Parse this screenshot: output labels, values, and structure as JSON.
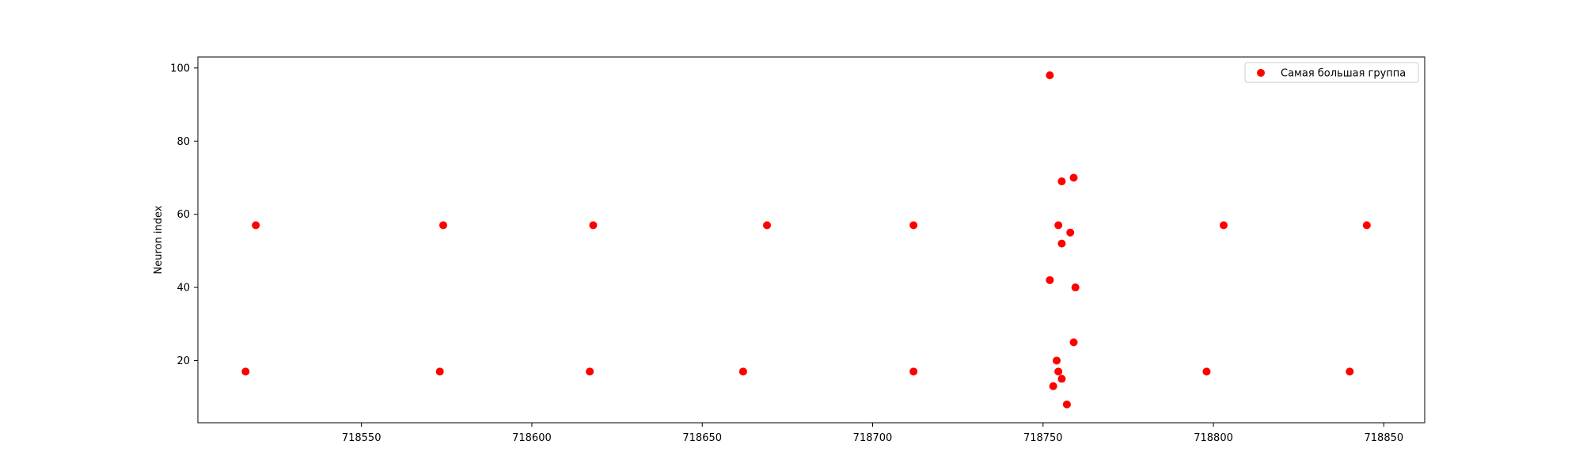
{
  "chart_data": {
    "type": "scatter",
    "title": "",
    "xlabel": "",
    "ylabel": "Neuron index",
    "xlim": [
      718502,
      718862
    ],
    "ylim": [
      3,
      103
    ],
    "xticks": [
      718550,
      718600,
      718650,
      718700,
      718750,
      718800,
      718850
    ],
    "yticks": [
      20,
      40,
      60,
      80,
      100
    ],
    "grid": false,
    "legend_position": "top-right",
    "series": [
      {
        "name": "Самая большая группа",
        "color": "#ff0000",
        "points": [
          {
            "x": 718519,
            "y": 57
          },
          {
            "x": 718516,
            "y": 17
          },
          {
            "x": 718574,
            "y": 57
          },
          {
            "x": 718573,
            "y": 17
          },
          {
            "x": 718618,
            "y": 57
          },
          {
            "x": 718617,
            "y": 17
          },
          {
            "x": 718669,
            "y": 57
          },
          {
            "x": 718662,
            "y": 17
          },
          {
            "x": 718712,
            "y": 57
          },
          {
            "x": 718712,
            "y": 17
          },
          {
            "x": 718752,
            "y": 98
          },
          {
            "x": 718752,
            "y": 42
          },
          {
            "x": 718753,
            "y": 13
          },
          {
            "x": 718754,
            "y": 20
          },
          {
            "x": 718754.5,
            "y": 57
          },
          {
            "x": 718754.5,
            "y": 17
          },
          {
            "x": 718755.5,
            "y": 69
          },
          {
            "x": 718755.5,
            "y": 52
          },
          {
            "x": 718755.5,
            "y": 15
          },
          {
            "x": 718757,
            "y": 8
          },
          {
            "x": 718758,
            "y": 55
          },
          {
            "x": 718759,
            "y": 70
          },
          {
            "x": 718759,
            "y": 25
          },
          {
            "x": 718759.5,
            "y": 40
          },
          {
            "x": 718803,
            "y": 57
          },
          {
            "x": 718798,
            "y": 17
          },
          {
            "x": 718845,
            "y": 57
          },
          {
            "x": 718840,
            "y": 17
          }
        ]
      }
    ]
  }
}
